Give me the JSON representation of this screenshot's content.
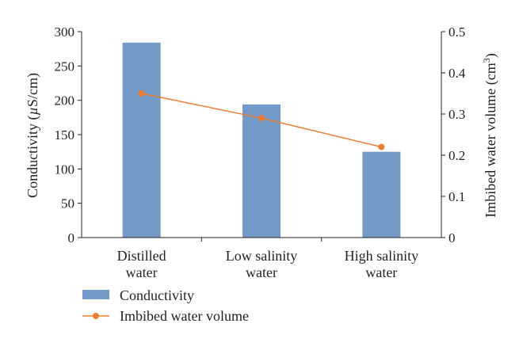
{
  "chart_data": {
    "type": "bar",
    "categories": [
      [
        "Distilled",
        "water"
      ],
      [
        "Low salinity",
        "water"
      ],
      [
        "High salinity",
        "water"
      ]
    ],
    "series": [
      {
        "name": "Conductivity",
        "type": "bar",
        "axis": "left",
        "color": "#7399c6",
        "values": [
          284,
          194,
          125
        ]
      },
      {
        "name": "Imbibed water volume",
        "type": "line",
        "axis": "right",
        "color": "#ed7d31",
        "values": [
          0.35,
          0.29,
          0.22
        ]
      }
    ],
    "ylabel": "Conductivity (µS/cm)",
    "ylabel_parts": [
      "Conductivity (",
      "µ",
      "S/cm)"
    ],
    "ylim": [
      0,
      300
    ],
    "yticks": [
      0,
      50,
      100,
      150,
      200,
      250,
      300
    ],
    "y2label": "Imbibed water volume (cm",
    "y2label_sup": "3",
    "y2label_close": ")",
    "y2lim": [
      0,
      0.5
    ],
    "y2ticks": [
      "0",
      "0.1",
      "0.2",
      "0.3",
      "0.4",
      "0.5"
    ],
    "legend_position": "bottom-left",
    "grid": false
  }
}
